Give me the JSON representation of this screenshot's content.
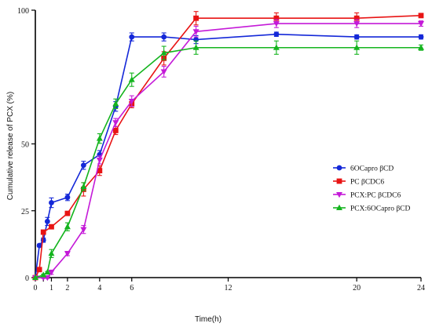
{
  "chart_data": {
    "type": "line",
    "xlabel": "Time(h)",
    "ylabel": "Cumulative release of PCX (%)",
    "xlim": [
      0,
      24
    ],
    "ylim": [
      0,
      100
    ],
    "x_ticks": [
      0,
      0.5,
      1,
      2,
      4,
      6,
      12,
      20,
      24
    ],
    "x_tick_labels": [
      "0",
      "",
      "1",
      "2",
      "4",
      "6",
      "12",
      "20",
      "24"
    ],
    "y_ticks": [
      0,
      25,
      50,
      100
    ],
    "y_tick_labels": [
      "0",
      "25",
      "50",
      "100"
    ],
    "grid": false,
    "legend_position": "right",
    "series": [
      {
        "name": "6OCapro βCD",
        "color": "#1428d8",
        "marker": "circle",
        "x": [
          0,
          0.25,
          0.5,
          0.75,
          1,
          2,
          3,
          4,
          5,
          6,
          8,
          10,
          15,
          20,
          24
        ],
        "y": [
          0,
          12,
          14,
          21,
          28,
          30,
          42,
          46,
          64,
          90,
          90,
          89,
          91,
          90,
          90
        ],
        "err": [
          0,
          0.5,
          0.8,
          1.5,
          1.8,
          1.2,
          1.5,
          1.5,
          1.8,
          1.5,
          1.5,
          1.5,
          0.8,
          0.8,
          0.8
        ]
      },
      {
        "name": "PC βCDC6",
        "color": "#e81414",
        "marker": "square",
        "x": [
          0,
          0.25,
          0.5,
          1,
          2,
          3,
          4,
          5,
          6,
          8,
          10,
          15,
          20,
          24
        ],
        "y": [
          0,
          3,
          17,
          19,
          24,
          33,
          40,
          55,
          65,
          82,
          97,
          97,
          97,
          98
        ],
        "err": [
          0,
          0.8,
          0.8,
          0.8,
          0.8,
          2.5,
          1.8,
          1.5,
          1.5,
          2.5,
          2.5,
          2,
          2,
          0.8
        ]
      },
      {
        "name": "PCX:PC βCDC6",
        "color": "#c41ad8",
        "marker": "triangle-down",
        "x": [
          0,
          0.5,
          0.75,
          1,
          2,
          3,
          4,
          5,
          6,
          8,
          10,
          15,
          20,
          24
        ],
        "y": [
          0,
          0,
          0,
          2,
          9,
          18,
          44,
          58,
          66,
          77,
          92,
          95,
          95,
          95
        ],
        "err": [
          0,
          0.3,
          0.3,
          0.8,
          0.8,
          1.5,
          1.5,
          1.5,
          2,
          2,
          2,
          1.5,
          1.5,
          1
        ]
      },
      {
        "name": "PCX:6OCapro βCD",
        "color": "#14b41e",
        "marker": "triangle-up",
        "x": [
          0,
          0.5,
          0.75,
          1,
          2,
          3,
          4,
          5,
          6,
          8,
          10,
          15,
          20,
          24
        ],
        "y": [
          0,
          1,
          2,
          9,
          19,
          34,
          52,
          65,
          74,
          84,
          86,
          86,
          86,
          86
        ],
        "err": [
          0,
          0.3,
          0.3,
          1.5,
          1.5,
          1.5,
          1.8,
          1.8,
          2.5,
          2.5,
          2.5,
          2.5,
          2.5,
          1
        ]
      }
    ]
  }
}
